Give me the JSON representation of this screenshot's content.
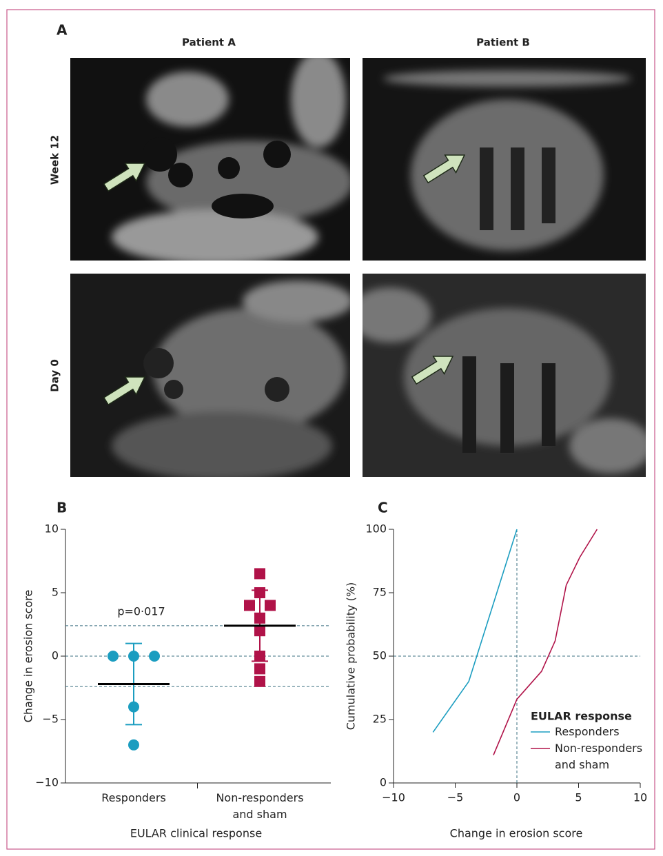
{
  "figure": {
    "panel_labels": [
      "A",
      "B",
      "C"
    ],
    "columns": [
      "Patient A",
      "Patient B"
    ],
    "rows": [
      "Week 12",
      "Day 0"
    ]
  },
  "chart_data": [
    {
      "type": "dot_plot",
      "ylabel": "Change in erosion score",
      "xlabel": "EULAR clinical response",
      "categories": [
        "Responders",
        "Non-responders and sham"
      ],
      "groups": [
        {
          "color": "#1b9dc0",
          "values": [
            0,
            0,
            0,
            -4,
            -7
          ],
          "mean": -2.2,
          "error": 3.2
        },
        {
          "color": "#b01248",
          "values": [
            6.5,
            5,
            4,
            4,
            3,
            2,
            0,
            -1,
            -2
          ],
          "mean": 2.4,
          "error": 2.8
        }
      ],
      "annotation": "p=0·017",
      "reference_lines": [
        2.4,
        0,
        -2.4
      ],
      "ylim": [
        -10,
        10
      ],
      "yticks": [
        {
          "value": -10,
          "label": "−10"
        },
        {
          "value": -5,
          "label": "−5"
        },
        0,
        5,
        10
      ]
    },
    {
      "type": "line",
      "ylabel": "Cumulative probability (%)",
      "xlabel": "Change in erosion score",
      "legend_title": "EULAR response",
      "legend_position": "lower right",
      "series": [
        {
          "name": "Responders",
          "color": "#1b9dc0",
          "x": [
            -6.8,
            -3.9,
            0
          ],
          "values": [
            20,
            40,
            100
          ]
        },
        {
          "name": "Non-responders and sham",
          "color": "#b01248",
          "x": [
            -1.9,
            0,
            2,
            3.1,
            4,
            5.1,
            6.5
          ],
          "values": [
            11,
            33,
            44,
            56,
            78,
            89,
            100
          ]
        }
      ],
      "reference_x": 0,
      "reference_y": 50,
      "xlim": [
        -10,
        10
      ],
      "xticks": [
        {
          "value": -10,
          "label": "−10"
        },
        {
          "value": -5,
          "label": "−5"
        },
        0,
        5,
        10
      ],
      "ylim": [
        0,
        100
      ],
      "yticks": [
        0,
        25,
        50,
        75,
        100
      ]
    }
  ]
}
